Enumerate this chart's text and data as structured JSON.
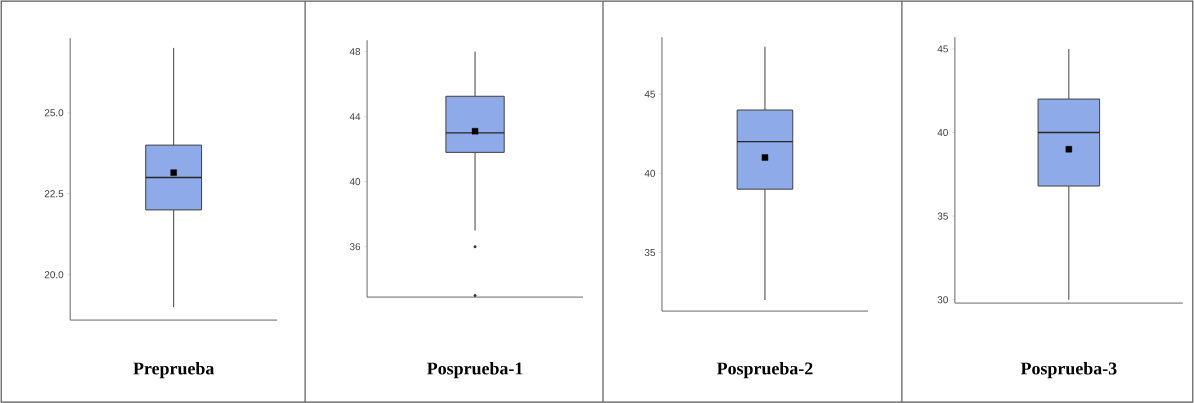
{
  "chart_data": [
    {
      "type": "box",
      "xlabel": "Preprueba",
      "categories": [
        null
      ],
      "color": "#8eaae8",
      "tick_labels": "y",
      "ylim": [
        18.6,
        27.3
      ],
      "yticks": [
        {
          "value": 20,
          "label": "20.0"
        },
        {
          "value": 22.5,
          "label": "22.5"
        },
        {
          "value": 25,
          "label": "25.0"
        }
      ],
      "boxes": [
        {
          "low": 19,
          "q1": 22,
          "median": 23,
          "q3": 24,
          "high": 27,
          "mean": 23.15
        }
      ]
    },
    {
      "type": "box",
      "xlabel": "Posprueba-1",
      "categories": [
        null
      ],
      "color": "#8eaae8",
      "tick_labels": "y",
      "ylim": [
        32.9,
        48.7
      ],
      "yticks": [
        36,
        40,
        44,
        48
      ],
      "boxes": [
        {
          "low": 37,
          "q1": 41.8,
          "median": 43,
          "q3": 45.25,
          "high": 48,
          "mean": 43.1,
          "outliers": [
            36,
            33
          ]
        }
      ]
    },
    {
      "type": "box",
      "xlabel": "Posprueba-2",
      "categories": [
        null
      ],
      "color": "#8eaae8",
      "tick_labels": "y",
      "ylim": [
        31.3,
        48.6
      ],
      "yticks": [
        35,
        40,
        45
      ],
      "boxes": [
        {
          "low": 32,
          "q1": 39,
          "median": 42,
          "q3": 44,
          "high": 48,
          "mean": 41
        }
      ]
    },
    {
      "type": "box",
      "xlabel": "Posprueba-3",
      "categories": [
        null
      ],
      "color": "#8eaae8",
      "tick_labels": "y",
      "ylim": [
        29.8,
        45.7
      ],
      "yticks": [
        30,
        35,
        40,
        45
      ],
      "boxes": [
        {
          "low": 30,
          "q1": 36.8,
          "median": 40,
          "q3": 42,
          "high": 45,
          "mean": 39
        }
      ]
    }
  ]
}
